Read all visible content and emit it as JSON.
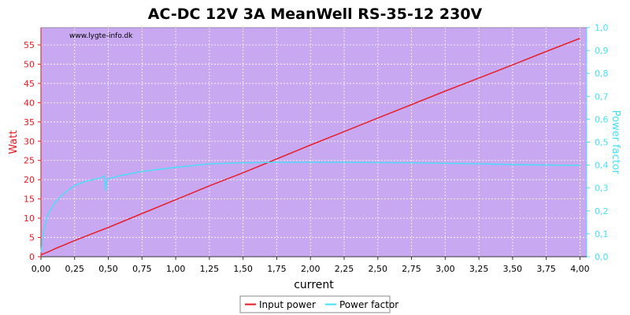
{
  "chart_data": {
    "type": "line",
    "title": "AC-DC 12V 3A MeanWell RS-35-12 230V",
    "watermark": "www.lygte-info.dk",
    "xlabel": "current",
    "ylabel": "Watt",
    "y2label": "Power factor",
    "xlim": [
      0,
      4.05
    ],
    "ylim": [
      0,
      59.5
    ],
    "y2lim": [
      0,
      1.0
    ],
    "x_ticks": [
      "0,00",
      "0,25",
      "0,50",
      "0,75",
      "1,00",
      "1,25",
      "1,50",
      "1,75",
      "2,00",
      "2,25",
      "2,50",
      "2,75",
      "3,00",
      "3,25",
      "3,50",
      "3,75",
      "4,00"
    ],
    "y_ticks": [
      "0",
      "5",
      "10",
      "15",
      "20",
      "25",
      "30",
      "35",
      "40",
      "45",
      "50",
      "55"
    ],
    "y2_ticks": [
      "0,0",
      "0,1",
      "0,2",
      "0,3",
      "0,4",
      "0,5",
      "0,6",
      "0,7",
      "0,8",
      "0,9",
      "1,0"
    ],
    "grid": true,
    "legend_position": "bottom-center",
    "plot_background": "#c8a8f0",
    "series": [
      {
        "name": "Input power",
        "axis": "left",
        "color": "#e8161e",
        "x": [
          0.0,
          0.05,
          0.1,
          0.25,
          0.5,
          0.75,
          1.0,
          1.25,
          1.5,
          1.75,
          2.0,
          2.25,
          2.5,
          2.75,
          3.0,
          3.25,
          3.5,
          3.75,
          4.0
        ],
        "y": [
          0.5,
          1.2,
          2.0,
          4.2,
          7.6,
          11.2,
          14.8,
          18.4,
          21.8,
          25.4,
          29.0,
          32.5,
          36.0,
          39.5,
          43.0,
          46.4,
          49.8,
          53.3,
          56.7
        ]
      },
      {
        "name": "Power factor",
        "axis": "right",
        "color": "#44e0f8",
        "x": [
          0.0,
          0.02,
          0.05,
          0.1,
          0.15,
          0.2,
          0.25,
          0.3,
          0.35,
          0.4,
          0.45,
          0.47,
          0.48,
          0.49,
          0.5,
          0.6,
          0.75,
          1.0,
          1.25,
          1.5,
          1.75,
          2.0,
          2.25,
          2.5,
          2.75,
          3.0,
          3.25,
          3.5,
          3.75,
          4.0
        ],
        "y": [
          0.02,
          0.11,
          0.18,
          0.235,
          0.265,
          0.29,
          0.31,
          0.322,
          0.332,
          0.338,
          0.345,
          0.353,
          0.29,
          0.335,
          0.34,
          0.355,
          0.372,
          0.39,
          0.405,
          0.41,
          0.412,
          0.412,
          0.412,
          0.411,
          0.41,
          0.408,
          0.406,
          0.402,
          0.4,
          0.399
        ]
      }
    ]
  }
}
